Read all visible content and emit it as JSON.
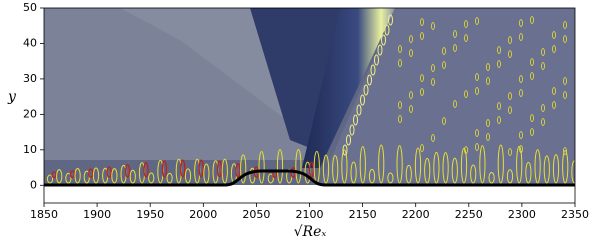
{
  "chart_data": {
    "type": "contour",
    "xlabel": "√Reₓ",
    "ylabel": "y",
    "xlim": [
      1850,
      2350
    ],
    "ylim": [
      -5,
      50
    ],
    "xticks": [
      1850,
      1900,
      1950,
      2000,
      2050,
      2100,
      2150,
      2200,
      2250,
      2300,
      2350
    ],
    "yticks": [
      0,
      10,
      20,
      30,
      40,
      50
    ]
  }
}
